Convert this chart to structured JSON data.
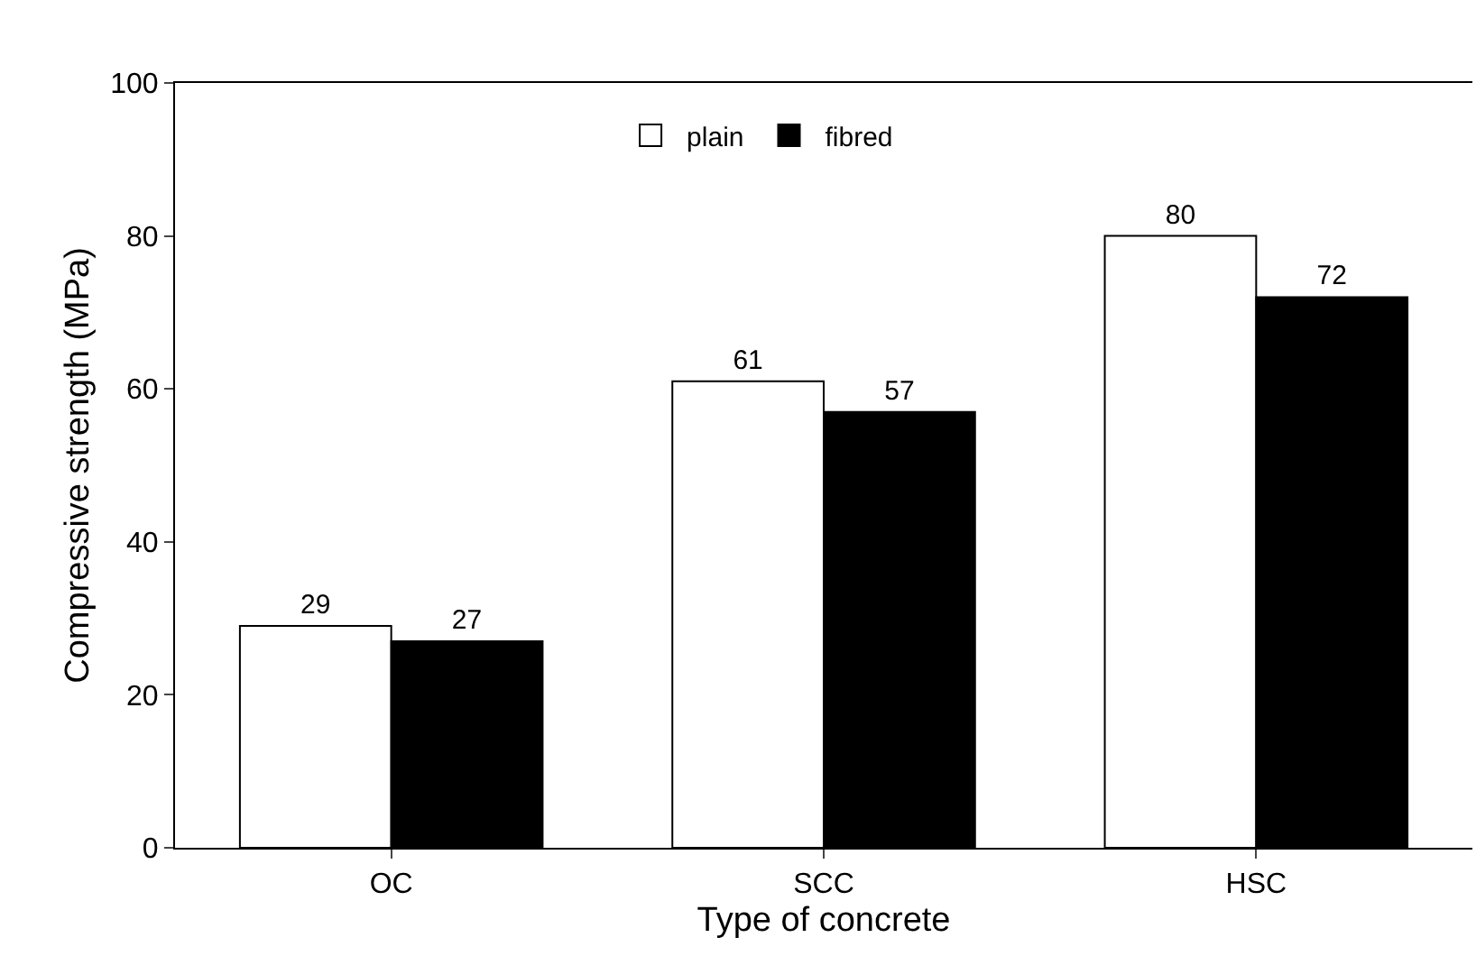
{
  "chart_data": {
    "type": "bar",
    "xlabel": "Type of concrete",
    "ylabel": "Compressive strength (MPa)",
    "categories": [
      "OC",
      "SCC",
      "HSC"
    ],
    "series": [
      {
        "name": "plain",
        "color": "#ffffff",
        "values": [
          29,
          61,
          80
        ]
      },
      {
        "name": "fibred",
        "color": "#000000",
        "values": [
          27,
          57,
          72
        ]
      }
    ],
    "ylim": [
      0,
      100
    ],
    "yticks": [
      0,
      20,
      40,
      60,
      80,
      100
    ],
    "grid": false,
    "legend": "top",
    "data_labels": true
  }
}
